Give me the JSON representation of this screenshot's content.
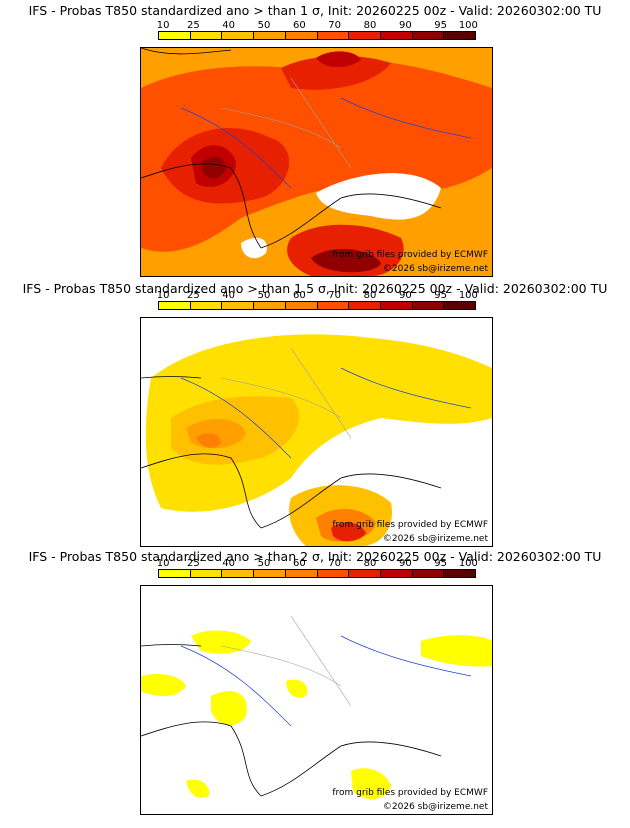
{
  "panels": [
    {
      "title": "IFS - Probas T850  standardized ano > than 1 σ, Init: 20260225 00z - Valid: 20260302:00 TU",
      "credit": "from grib files provided by ECMWF",
      "copyright": "©2026 sb@irizeme.net"
    },
    {
      "title": "IFS - Probas T850  standardized ano > than 1.5 σ, Init: 20260225 00z - Valid: 20260302:00 TU",
      "credit": "from grib files provided by ECMWF",
      "copyright": "©2026 sb@irizeme.net"
    },
    {
      "title": "IFS - Probas T850  standardized ano > than 2 σ, Init: 20260225 00z - Valid: 20260302:00 TU",
      "credit": "from grib files provided by ECMWF",
      "copyright": "©2026 sb@irizeme.net"
    }
  ],
  "scale": {
    "ticks": [
      "10",
      "25",
      "40",
      "50",
      "60",
      "70",
      "80",
      "90",
      "95",
      "100"
    ],
    "colors": [
      "#ffff00",
      "#ffe000",
      "#ffc000",
      "#ffa000",
      "#ff7f00",
      "#ff5000",
      "#e62000",
      "#c00000",
      "#900000",
      "#5a0000"
    ]
  },
  "map_colors": {
    "coast": "#000000",
    "rivers": "#2040d0",
    "borders": "#a0a0a0"
  }
}
